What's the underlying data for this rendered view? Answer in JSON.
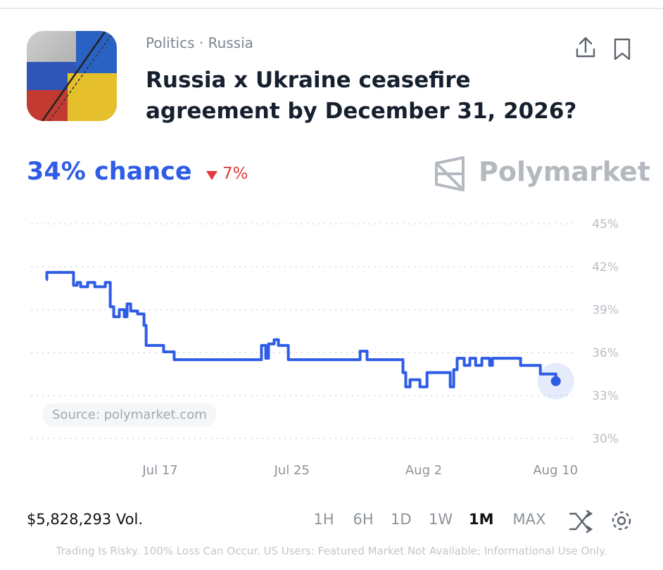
{
  "header": {
    "category": "Politics · Russia",
    "title": "Russia x Ukraine ceasefire agreement by December 31, 2026?"
  },
  "chance": "34% chance",
  "change": "7%",
  "brand": "Polymarket",
  "source": "Source: polymarket.com",
  "volume": "$5,828,293 Vol.",
  "ranges": [
    "1H",
    "6H",
    "1D",
    "1W",
    "1M",
    "MAX"
  ],
  "active_range": "1M",
  "disclaimer": "Trading Is Risky. 100% Loss Can Occur. US Users: Featured Market Not Available; Informational Use Only.",
  "chart_data": {
    "type": "line",
    "color": "#2e5ce6",
    "x": [
      10.08,
      10.12,
      11.74,
      11.96,
      12.17,
      12.6,
      13.03,
      13.67,
      13.97,
      14.18,
      14.52,
      14.82,
      14.99,
      15.21,
      15.63,
      16.02,
      16.15,
      17.21,
      17.85,
      23.15,
      23.41,
      23.58,
      23.92,
      24.18,
      24.78,
      29.14,
      29.56,
      31.74,
      31.91,
      32.17,
      32.77,
      33.2,
      34.61,
      34.82,
      35.03,
      35.46,
      35.8,
      36.15,
      36.53,
      37.0,
      37.17,
      38.88,
      40.08,
      41.02
    ],
    "values": [
      41.1,
      41.6,
      40.7,
      40.9,
      40.6,
      40.9,
      40.6,
      40.9,
      39.2,
      38.5,
      39.0,
      38.5,
      39.4,
      38.9,
      38.7,
      37.9,
      36.5,
      36.05,
      35.5,
      36.5,
      35.6,
      36.6,
      36.9,
      36.5,
      35.5,
      36.1,
      35.5,
      34.6,
      33.6,
      34.1,
      33.6,
      34.6,
      33.6,
      34.8,
      35.6,
      35.1,
      35.6,
      35.1,
      35.6,
      35.1,
      35.6,
      35.1,
      34.5,
      34.0
    ],
    "xlim": [
      9.2,
      42.1
    ],
    "xticks": [
      {
        "value": 17,
        "label": "Jul 17"
      },
      {
        "value": 25,
        "label": "Jul 25"
      },
      {
        "value": 33,
        "label": "Aug 2"
      },
      {
        "value": 41,
        "label": "Aug 10"
      }
    ],
    "ylim": [
      30,
      45
    ],
    "yticks": [
      {
        "value": 30,
        "label": "30%"
      },
      {
        "value": 33,
        "label": "33%"
      },
      {
        "value": 36,
        "label": "36%"
      },
      {
        "value": 39,
        "label": "39%"
      },
      {
        "value": 42,
        "label": "42%"
      },
      {
        "value": 45,
        "label": "45%"
      }
    ],
    "grid": true,
    "step": true
  }
}
